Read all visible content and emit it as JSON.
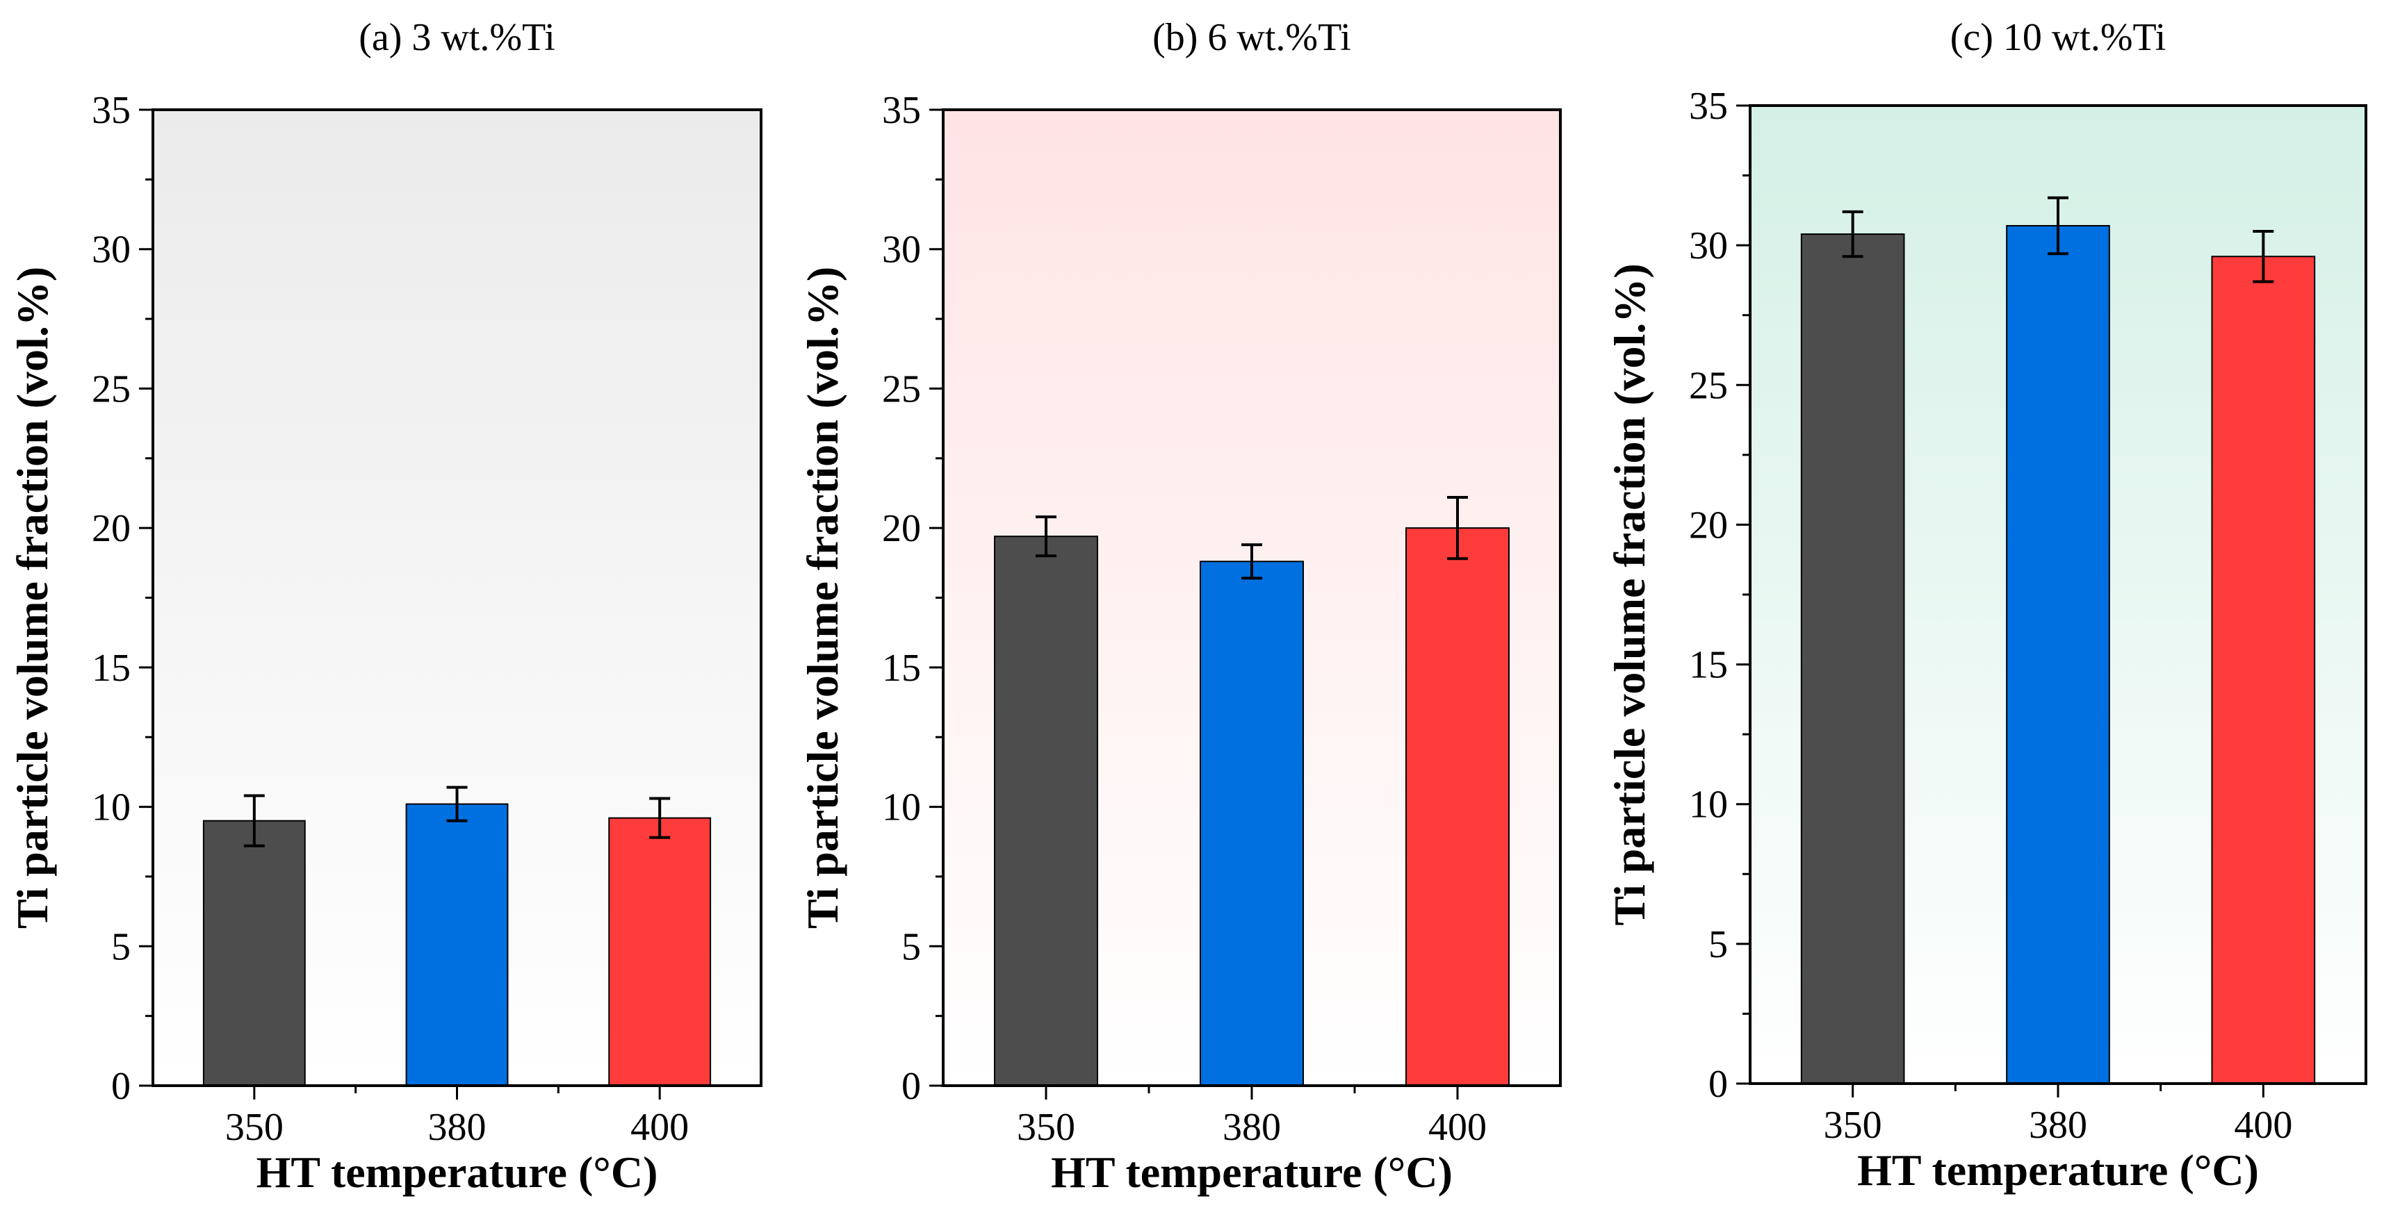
{
  "colors": {
    "bar_350": "#4d4d4d",
    "bar_380": "#0070e0",
    "bar_400": "#ff3c3c",
    "bg_a": "#ebebeb",
    "bg_b": "#ffe4e4",
    "bg_c": "#d4f0e6"
  },
  "chart_data": [
    {
      "type": "bar",
      "title": "(a) 3 wt.%Ti",
      "xlabel": "HT temperature (°C)",
      "ylabel": "Ti particle volume fraction (vol.%)",
      "categories": [
        "350",
        "380",
        "400"
      ],
      "values": [
        9.5,
        10.1,
        9.6
      ],
      "errors": [
        0.9,
        0.6,
        0.7
      ],
      "ylim": [
        0,
        35
      ],
      "yticks": [
        0,
        5,
        10,
        15,
        20,
        25,
        30,
        35
      ],
      "background": "gray"
    },
    {
      "type": "bar",
      "title": "(b) 6 wt.%Ti",
      "xlabel": "HT temperature (°C)",
      "ylabel": "Ti particle volume fraction (vol.%)",
      "categories": [
        "350",
        "380",
        "400"
      ],
      "values": [
        19.7,
        18.8,
        20.0
      ],
      "errors": [
        0.7,
        0.6,
        1.1
      ],
      "ylim": [
        0,
        35
      ],
      "yticks": [
        0,
        5,
        10,
        15,
        20,
        25,
        30,
        35
      ],
      "background": "pink"
    },
    {
      "type": "bar",
      "title": "(c) 10 wt.%Ti",
      "xlabel": "HT temperature (°C)",
      "ylabel": "Ti particle volume fraction (vol.%)",
      "categories": [
        "350",
        "380",
        "400"
      ],
      "values": [
        30.4,
        30.7,
        29.6
      ],
      "errors": [
        0.8,
        1.0,
        0.9
      ],
      "ylim": [
        0,
        35
      ],
      "yticks": [
        0,
        5,
        10,
        15,
        20,
        25,
        30,
        35
      ],
      "background": "green"
    }
  ]
}
